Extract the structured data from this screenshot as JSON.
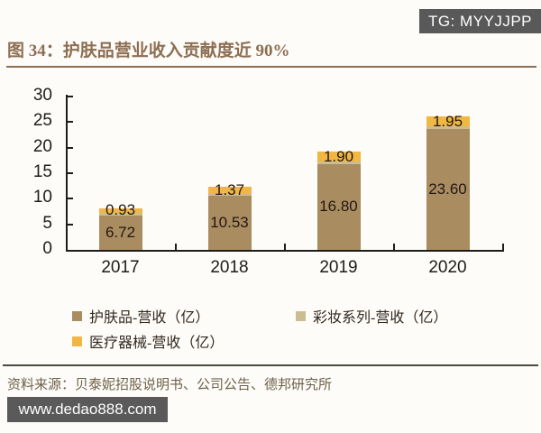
{
  "badges": {
    "telegram": "TG: MYYJJPP",
    "website": "www.dedao888.com"
  },
  "figure": {
    "title": "图 34：护肤品营业收入贡献度近 90%"
  },
  "footer": {
    "source": "资料来源：贝泰妮招股说明书、公司公告、德邦研究所"
  },
  "colors": {
    "title_brown": "#8d6e52",
    "top_rule": "#8f6e55",
    "bottom_rule": "#4b4b41",
    "badge_gray": "#595959",
    "axis_black": "#1d1d1d",
    "bar_label_dark": "#241812",
    "bar_skincare_brown": "#a98c60",
    "bar_makeup_tan": "#cbbc92",
    "bar_medical_yellow": "#f0b843"
  },
  "chart_data": {
    "type": "bar",
    "stacked": true,
    "title": "图 34：护肤品营业收入贡献度近 90%",
    "categories": [
      "2017",
      "2018",
      "2019",
      "2020"
    ],
    "series": [
      {
        "name": "护肤品-营收（亿）",
        "color": "#a98c60",
        "values": [
          6.72,
          10.53,
          16.8,
          23.6
        ],
        "labels": [
          "6.72",
          "10.53",
          "16.80",
          "23.60"
        ]
      },
      {
        "name": "彩妆系列-营收（亿）",
        "color": "#cbbc92",
        "values": [
          0.3,
          0.35,
          0.4,
          0.5
        ],
        "labels": [
          "",
          "",
          "",
          ""
        ],
        "note": "segment values are unlabeled in the chart; estimated from bar pixel heights"
      },
      {
        "name": "医疗器械-营收（亿）",
        "color": "#f0b843",
        "values": [
          0.93,
          1.37,
          1.9,
          1.95
        ],
        "labels": [
          "0.93",
          "1.37",
          "1.90",
          "1.95"
        ]
      }
    ],
    "xlabel": "",
    "ylabel": "",
    "ylim": [
      0,
      30
    ],
    "yticks": [
      0,
      5,
      10,
      15,
      20,
      25,
      30
    ],
    "grid": false,
    "legend_position": "bottom-left"
  }
}
